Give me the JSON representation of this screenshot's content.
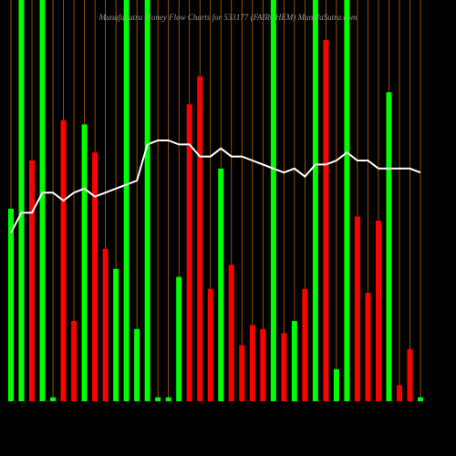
{
  "chart_data": {
    "type": "bar",
    "title": "MunafaSutra Money Flow Charts for 533177 (FAIRCHEM) MunafaSutra.com",
    "ylim": [
      0,
      100
    ],
    "series": [
      {
        "values": [
          48,
          100,
          60,
          100,
          1,
          70,
          20,
          69,
          62,
          38,
          33,
          100,
          18,
          100,
          1,
          1,
          31,
          74,
          81,
          28,
          58,
          34,
          14,
          19,
          18,
          100,
          17,
          20,
          28,
          100,
          90,
          8,
          100,
          46,
          27,
          45,
          77,
          4,
          13,
          1
        ],
        "colors": [
          "#00ff00",
          "#00ff00",
          "#ff0000",
          "#00ff00",
          "#00ff00",
          "#ff0000",
          "#ff0000",
          "#00ff00",
          "#ff0000",
          "#ff0000",
          "#00ff00",
          "#00ff00",
          "#00ff00",
          "#00ff00",
          "#00ff00",
          "#00ff00",
          "#00ff00",
          "#ff0000",
          "#ff0000",
          "#ff0000",
          "#00ff00",
          "#ff0000",
          "#ff0000",
          "#ff0000",
          "#ff0000",
          "#00ff00",
          "#ff0000",
          "#00ff00",
          "#ff0000",
          "#00ff00",
          "#ff0000",
          "#00ff00",
          "#00ff00",
          "#ff0000",
          "#ff0000",
          "#ff0000",
          "#00ff00",
          "#ff0000",
          "#ff0000",
          "#00ff00"
        ]
      },
      {
        "type": "line",
        "color": "#ffffff",
        "values": [
          42,
          47,
          47,
          52,
          52,
          50,
          52,
          53,
          51,
          52,
          53,
          54,
          55,
          64,
          65,
          65,
          64,
          64,
          61,
          61,
          63,
          61,
          61,
          60,
          59,
          58,
          57,
          58,
          56,
          59,
          59,
          60,
          62,
          60,
          60,
          58,
          58,
          58,
          58,
          57
        ]
      }
    ]
  }
}
